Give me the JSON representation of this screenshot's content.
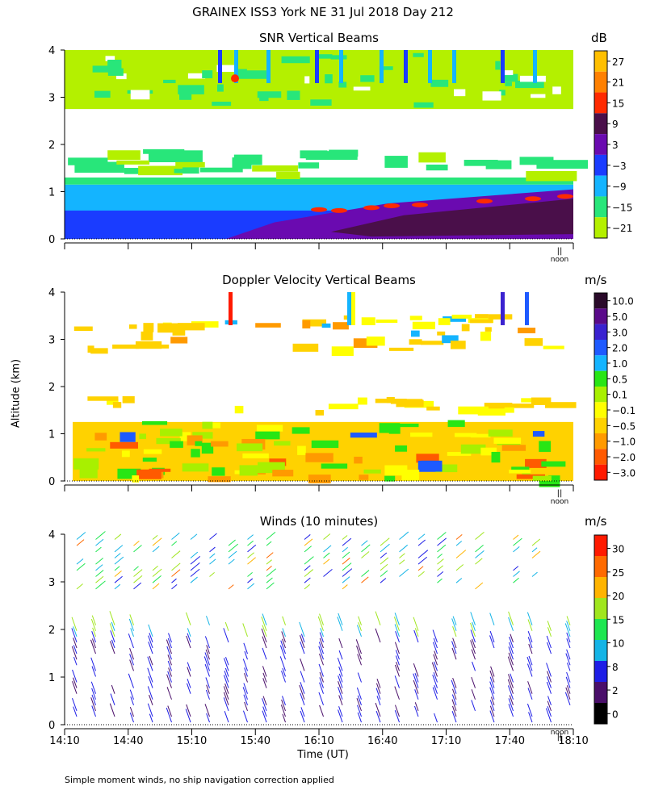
{
  "title": "GRAINEX ISS3 York NE  31 Jul 2018 Day 212",
  "ylabel": "Altitude (km)",
  "noon_label": "noon",
  "noon_glyph": "||",
  "xlabel": "Time (UT)",
  "xticks": [
    "14:10",
    "14:40",
    "15:10",
    "15:40",
    "16:10",
    "16:40",
    "17:10",
    "17:40",
    "18:10"
  ],
  "footer": "Simple moment winds, no ship navigation correction applied",
  "panels": [
    {
      "title": "SNR Vertical Beams",
      "unit": "dB",
      "scale": [
        "27",
        "21",
        "15",
        "9",
        "3",
        "−3",
        "−9",
        "−15",
        "−21"
      ],
      "colors": [
        "#ffbf00",
        "#ff8000",
        "#ff2a00",
        "#4a0f4a",
        "#6a0ab0",
        "#1a3cff",
        "#14b4ff",
        "#28e67a",
        "#b4f000"
      ]
    },
    {
      "title": "Doppler Velocity Vertical Beams",
      "unit": "m/s",
      "scale": [
        "10.0",
        "5.0",
        "3.0",
        "2.0",
        "1.0",
        "0.5",
        "0.1",
        "−0.1",
        "−0.5",
        "−1.0",
        "−2.0",
        "−3.0"
      ],
      "colors": [
        "#2a0a2a",
        "#5a0a8a",
        "#3a22d0",
        "#1e5aff",
        "#14b4ff",
        "#28e614",
        "#a8f000",
        "#ffff00",
        "#ffd200",
        "#ff9a00",
        "#ff5a00",
        "#ff1a00"
      ]
    },
    {
      "title": "Winds (10 minutes)",
      "unit": "m/s",
      "scale": [
        "30",
        "25",
        "20",
        "15",
        "10",
        "8",
        "2",
        "0"
      ],
      "colors": [
        "#ff1a00",
        "#ff6a00",
        "#ffb400",
        "#a0e61e",
        "#1ee650",
        "#14b4e6",
        "#1e1ee6",
        "#4a0f6a",
        "#000000"
      ]
    }
  ],
  "chart_data": [
    {
      "type": "heatmap",
      "title": "SNR Vertical Beams",
      "xlabel": "",
      "ylabel": "Altitude (km)",
      "ylim": [
        0,
        4
      ],
      "yticks": [
        "0",
        "1",
        "2",
        "3",
        "4"
      ],
      "colorbar_unit": "dB",
      "colorbar_ticks": [
        27,
        21,
        15,
        9,
        3,
        -3,
        -9,
        -15,
        -21
      ]
    },
    {
      "type": "heatmap",
      "title": "Doppler Velocity Vertical Beams",
      "xlabel": "",
      "ylabel": "Altitude (km)",
      "ylim": [
        0,
        4
      ],
      "yticks": [
        "0",
        "1",
        "2",
        "3",
        "4"
      ],
      "colorbar_unit": "m/s",
      "colorbar_ticks": [
        10.0,
        5.0,
        3.0,
        2.0,
        1.0,
        0.5,
        0.1,
        -0.1,
        -0.5,
        -1.0,
        -2.0,
        -3.0
      ]
    },
    {
      "type": "scatter",
      "title": "Winds (10 minutes)",
      "xlabel": "Time (UT)",
      "ylabel": "Altitude (km)",
      "ylim": [
        0,
        4
      ],
      "yticks": [
        "0",
        "1",
        "2",
        "3",
        "4"
      ],
      "colorbar_unit": "m/s",
      "colorbar_ticks": [
        30,
        25,
        20,
        15,
        10,
        8,
        2,
        0
      ]
    }
  ]
}
